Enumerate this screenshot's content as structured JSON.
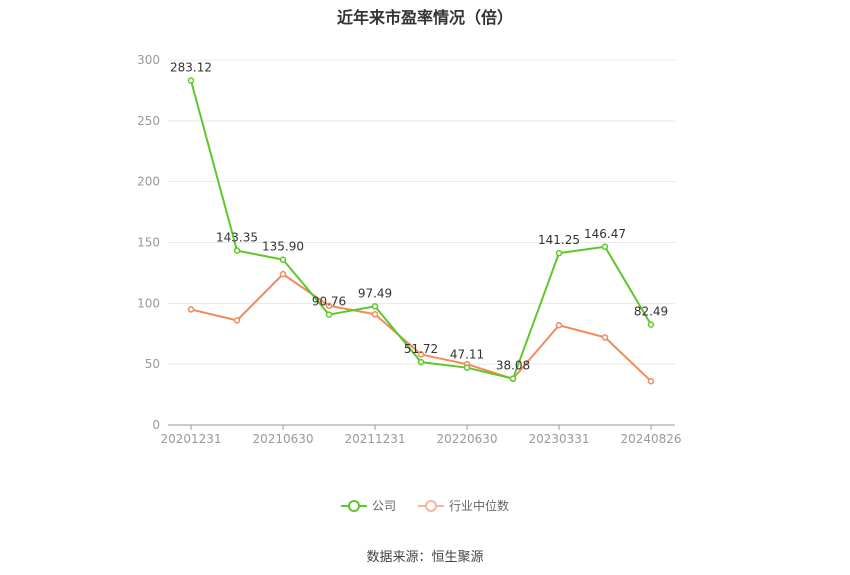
{
  "chart_data": {
    "type": "line",
    "title": "近年来市盈率情况（倍）",
    "x_ticks": [
      "20201231",
      "20210630",
      "20211231",
      "20220630",
      "20230331",
      "20240826"
    ],
    "ylim": [
      0,
      300
    ],
    "yticks": [
      0,
      50,
      100,
      150,
      200,
      250,
      300
    ],
    "grid": true,
    "legend_position": "bottom",
    "series": [
      {
        "name": "公司",
        "color": "#5ec82b",
        "values": [
          283.12,
          143.35,
          135.9,
          90.76,
          97.49,
          51.72,
          47.11,
          38.08,
          141.25,
          146.47,
          82.49
        ],
        "labels": [
          "283.12",
          "143.35",
          "135.90",
          "90.76",
          "97.49",
          "51.72",
          "47.11",
          "38.08",
          "141.25",
          "146.47",
          "82.49"
        ]
      },
      {
        "name": "行业中位数",
        "color": "#f08b5b",
        "values": [
          95,
          86,
          124,
          98,
          91,
          58,
          50,
          38,
          82,
          72,
          36
        ]
      }
    ]
  },
  "source_text": "数据来源：恒生聚源"
}
